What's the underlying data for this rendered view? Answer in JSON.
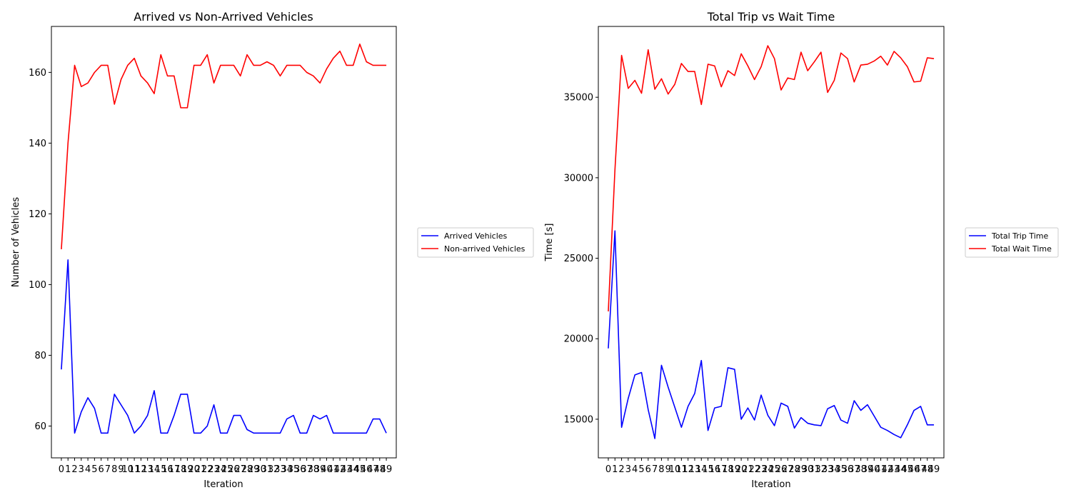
{
  "chart_data": [
    {
      "type": "line",
      "title": "Arrived vs Non-Arrived Vehicles",
      "xlabel": "Iteration",
      "ylabel": "Number of Vehicles",
      "x": [
        0,
        1,
        2,
        3,
        4,
        5,
        6,
        7,
        8,
        9,
        10,
        11,
        12,
        13,
        14,
        15,
        16,
        17,
        18,
        19,
        20,
        21,
        22,
        23,
        24,
        25,
        26,
        27,
        28,
        29,
        30,
        31,
        32,
        33,
        34,
        35,
        36,
        37,
        38,
        39,
        40,
        41,
        42,
        43,
        44,
        45,
        46,
        47,
        48,
        49
      ],
      "xlim": [
        -1.5,
        50.5
      ],
      "ylim": [
        51,
        173
      ],
      "yticks": [
        60,
        80,
        100,
        120,
        140,
        160
      ],
      "grid": false,
      "legend_position": "outside right",
      "series": [
        {
          "name": "Arrived Vehicles",
          "color": "#0000ff",
          "values": [
            76,
            107,
            58,
            64,
            68,
            65,
            58,
            58,
            69,
            66,
            63,
            58,
            60,
            63,
            70,
            58,
            58,
            63,
            69,
            69,
            58,
            58,
            60,
            66,
            58,
            58,
            63,
            63,
            59,
            58,
            58,
            58,
            58,
            58,
            62,
            63,
            58,
            58,
            63,
            62,
            63,
            58,
            58,
            58,
            58,
            58,
            58,
            62,
            62,
            58
          ]
        },
        {
          "name": "Non-arrived Vehicles",
          "color": "#ff0000",
          "values": [
            110,
            140,
            162,
            156,
            157,
            160,
            162,
            162,
            151,
            158,
            162,
            164,
            159,
            157,
            154,
            165,
            159,
            159,
            150,
            150,
            162,
            162,
            165,
            157,
            162,
            162,
            162,
            159,
            165,
            162,
            162,
            163,
            162,
            159,
            162,
            162,
            162,
            160,
            159,
            157,
            161,
            164,
            166,
            162,
            162,
            168,
            163,
            162,
            162,
            162
          ]
        }
      ]
    },
    {
      "type": "line",
      "title": "Total Trip vs Wait Time",
      "xlabel": "Iteration",
      "ylabel": "Time [s]",
      "x": [
        0,
        1,
        2,
        3,
        4,
        5,
        6,
        7,
        8,
        9,
        10,
        11,
        12,
        13,
        14,
        15,
        16,
        17,
        18,
        19,
        20,
        21,
        22,
        23,
        24,
        25,
        26,
        27,
        28,
        29,
        30,
        31,
        32,
        33,
        34,
        35,
        36,
        37,
        38,
        39,
        40,
        41,
        42,
        43,
        44,
        45,
        46,
        47,
        48,
        49
      ],
      "xlim": [
        -1.5,
        50.5
      ],
      "ylim": [
        12600,
        39400
      ],
      "yticks": [
        15000,
        20000,
        25000,
        30000,
        35000
      ],
      "grid": false,
      "legend_position": "outside right",
      "series": [
        {
          "name": "Total Trip Time",
          "color": "#0000ff",
          "values": [
            19400,
            26700,
            14500,
            16300,
            17750,
            17900,
            15600,
            13800,
            18350,
            17000,
            15750,
            14500,
            15800,
            16600,
            18650,
            14300,
            15700,
            15800,
            18200,
            18100,
            15000,
            15700,
            14950,
            16500,
            15250,
            14600,
            16000,
            15800,
            14450,
            15100,
            14750,
            14650,
            14600,
            15650,
            15850,
            14950,
            14750,
            16150,
            15550,
            15900,
            15200,
            14500,
            14300,
            14050,
            13850,
            14650,
            15550,
            15800,
            14650,
            14650
          ]
        },
        {
          "name": "Total Wait Time",
          "color": "#ff0000",
          "values": [
            21700,
            30500,
            37600,
            35550,
            36050,
            35250,
            37950,
            35500,
            36150,
            35200,
            35800,
            37100,
            36600,
            36600,
            34550,
            37050,
            36950,
            35650,
            36650,
            36350,
            37700,
            36950,
            36100,
            36900,
            38200,
            37400,
            35450,
            36200,
            36100,
            37800,
            36650,
            37200,
            37800,
            35300,
            36050,
            37750,
            37400,
            35950,
            37000,
            37050,
            37250,
            37550,
            37000,
            37850,
            37450,
            36900,
            35950,
            36000,
            37450,
            37400
          ]
        }
      ]
    }
  ]
}
